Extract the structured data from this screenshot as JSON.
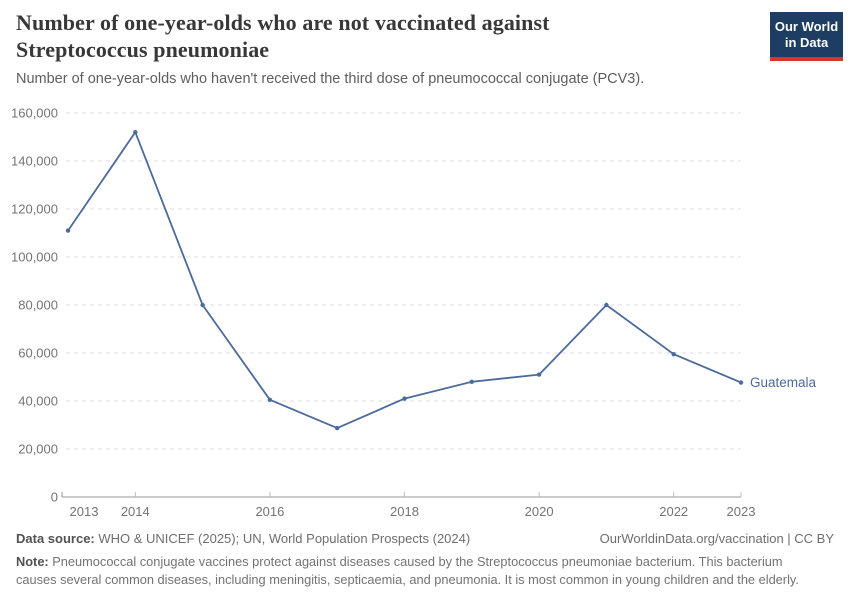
{
  "header": {
    "title": "Number of one-year-olds who are not vaccinated against Streptococcus pneumoniae",
    "subtitle": "Number of one-year-olds who haven't received the third dose of pneumococcal conjugate (PCV3).",
    "logo": {
      "line1": "Our World",
      "line2": "in Data",
      "bg_color": "#1d3d63",
      "accent_color": "#d8352a"
    }
  },
  "chart_data": {
    "type": "line",
    "title": "Number of one-year-olds who are not vaccinated against Streptococcus pneumoniae",
    "subtitle": "Number of one-year-olds who haven't received the third dose of pneumococcal conjugate (PCV3).",
    "x": [
      2013,
      2014,
      2015,
      2016,
      2017,
      2018,
      2019,
      2020,
      2021,
      2022,
      2023
    ],
    "series": [
      {
        "name": "Guatemala",
        "color": "#4c6a9c",
        "values": [
          111000,
          152000,
          80000,
          40500,
          28700,
          41000,
          48000,
          51000,
          80000,
          59500,
          47700
        ]
      }
    ],
    "ylim": [
      0,
      160000
    ],
    "ytick_interval": 20000,
    "ytick_labels": [
      "0",
      "20,000",
      "40,000",
      "60,000",
      "80,000",
      "100,000",
      "120,000",
      "140,000",
      "160,000"
    ],
    "xticks_labeled": [
      2013,
      2014,
      2016,
      2018,
      2020,
      2022,
      2023
    ],
    "grid": "horizontal-dashed",
    "grid_color": "#dddddd",
    "axis_color": "#999999",
    "legend_position": "end-of-line",
    "end_label": "Guatemala"
  },
  "footer": {
    "datasource_label": "Data source:",
    "datasource_text": " WHO & UNICEF (2025); UN, World Population Prospects (2024)",
    "link_text": "OurWorldinData.org/vaccination | CC BY",
    "note_label": "Note:",
    "note_text": " Pneumococcal conjugate vaccines protect against diseases caused by the Streptococcus pneumoniae bacterium. This bacterium causes several common diseases, including meningitis, septicaemia, and pneumonia. It is most common in young children and the elderly."
  }
}
